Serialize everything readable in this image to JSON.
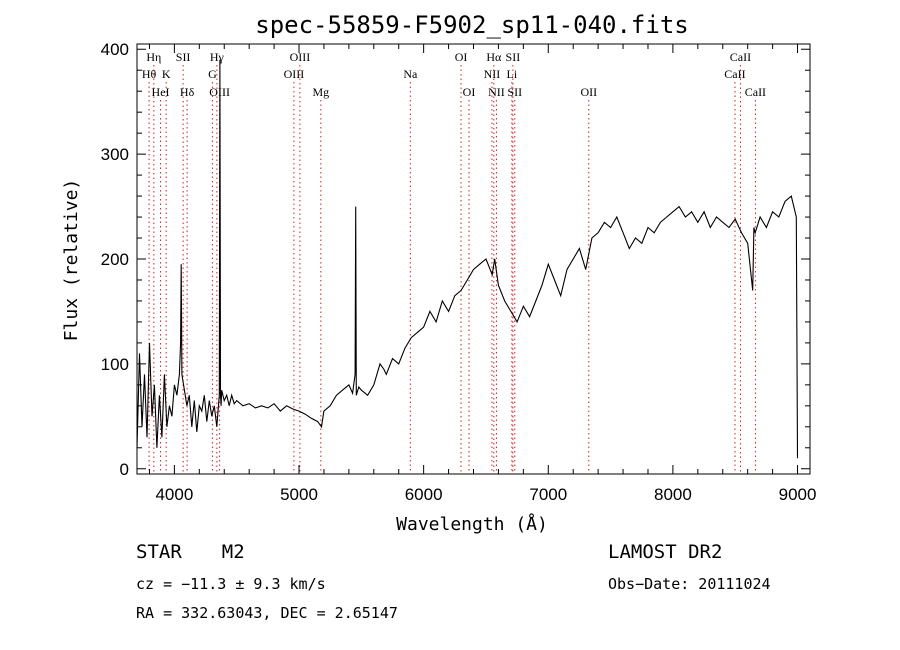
{
  "chart_data": {
    "type": "line",
    "title": "spec-55859-F5902_sp11-040.fits",
    "xlabel": "Wavelength (Å)",
    "ylabel": "Flux (relative)",
    "xlim": [
      3700,
      9100
    ],
    "ylim": [
      -5,
      405
    ],
    "x_ticks": [
      4000,
      5000,
      6000,
      7000,
      8000,
      9000
    ],
    "y_ticks": [
      0,
      100,
      200,
      300,
      400
    ],
    "grid": false,
    "series": [
      {
        "x": [
          3700,
          3720,
          3740,
          3760,
          3780,
          3800,
          3820,
          3840,
          3860,
          3880,
          3900,
          3920,
          3940,
          3960,
          3980,
          4000,
          4020,
          4040,
          4050,
          4055,
          4060,
          4080,
          4100,
          4120,
          4140,
          4160,
          4180,
          4200,
          4220,
          4240,
          4260,
          4280,
          4300,
          4320,
          4340,
          4360,
          4365,
          4370,
          4375,
          4380,
          4400,
          4420,
          4440,
          4460,
          4480,
          4500,
          4550,
          4600,
          4650,
          4700,
          4750,
          4800,
          4850,
          4900,
          4950,
          5000,
          5050,
          5100,
          5150,
          5180,
          5200,
          5250,
          5300,
          5350,
          5400,
          5430,
          5450,
          5455,
          5460,
          5480,
          5500,
          5550,
          5600,
          5650,
          5680,
          5700,
          5750,
          5800,
          5850,
          5900,
          5950,
          6000,
          6050,
          6100,
          6150,
          6200,
          6250,
          6300,
          6350,
          6400,
          6450,
          6500,
          6550,
          6570,
          6600,
          6650,
          6700,
          6750,
          6800,
          6850,
          6900,
          6950,
          7000,
          7050,
          7100,
          7150,
          7200,
          7250,
          7300,
          7350,
          7400,
          7450,
          7500,
          7550,
          7600,
          7650,
          7700,
          7750,
          7800,
          7850,
          7900,
          7950,
          8000,
          8050,
          8100,
          8150,
          8200,
          8250,
          8300,
          8350,
          8400,
          8450,
          8500,
          8550,
          8600,
          8640,
          8650,
          8660,
          8700,
          8750,
          8800,
          8850,
          8900,
          8950,
          8970,
          8990,
          9000
        ],
        "y": [
          20,
          110,
          40,
          90,
          30,
          120,
          50,
          80,
          20,
          70,
          30,
          90,
          40,
          60,
          50,
          80,
          70,
          90,
          120,
          195,
          90,
          75,
          60,
          70,
          40,
          65,
          35,
          60,
          55,
          70,
          45,
          65,
          50,
          60,
          40,
          70,
          390,
          70,
          60,
          75,
          65,
          70,
          60,
          70,
          62,
          65,
          60,
          62,
          58,
          60,
          58,
          62,
          55,
          60,
          57,
          55,
          52,
          48,
          45,
          40,
          55,
          60,
          70,
          75,
          80,
          72,
          90,
          250,
          70,
          78,
          75,
          70,
          80,
          100,
          95,
          90,
          105,
          100,
          115,
          125,
          130,
          135,
          150,
          140,
          160,
          150,
          165,
          170,
          180,
          190,
          195,
          200,
          185,
          200,
          175,
          160,
          150,
          140,
          155,
          145,
          160,
          175,
          195,
          180,
          165,
          190,
          200,
          210,
          190,
          220,
          225,
          235,
          230,
          240,
          225,
          210,
          220,
          215,
          230,
          225,
          235,
          240,
          245,
          250,
          240,
          245,
          235,
          245,
          230,
          240,
          235,
          230,
          238,
          225,
          215,
          170,
          230,
          225,
          240,
          230,
          245,
          240,
          255,
          260,
          250,
          240,
          10
        ]
      }
    ],
    "reference_lines": [
      {
        "label": "Hη",
        "x": 3835,
        "row": 1
      },
      {
        "label": "Hθ",
        "x": 3797,
        "row": 2
      },
      {
        "label": "HeI",
        "x": 3889,
        "row": 3
      },
      {
        "label": "SII",
        "x": 4070,
        "row": 1
      },
      {
        "label": "K",
        "x": 3934,
        "row": 2
      },
      {
        "label": "Hδ",
        "x": 4102,
        "row": 3
      },
      {
        "label": "Hγ",
        "x": 4341,
        "row": 1
      },
      {
        "label": "G",
        "x": 4305,
        "row": 2
      },
      {
        "label": "OIII",
        "x": 4363,
        "row": 3
      },
      {
        "label": "OIII",
        "x": 5007,
        "row": 1
      },
      {
        "label": "OIII",
        "x": 4959,
        "row": 2
      },
      {
        "label": "Mg",
        "x": 5175,
        "row": 3
      },
      {
        "label": "Na",
        "x": 5893,
        "row": 2
      },
      {
        "label": "OI",
        "x": 6300,
        "row": 1
      },
      {
        "label": "OI",
        "x": 6364,
        "row": 3
      },
      {
        "label": "Hα",
        "x": 6563,
        "row": 1
      },
      {
        "label": "SII",
        "x": 6716,
        "row": 1
      },
      {
        "label": "NII",
        "x": 6548,
        "row": 2
      },
      {
        "label": "Li",
        "x": 6708,
        "row": 2
      },
      {
        "label": "NII",
        "x": 6584,
        "row": 3
      },
      {
        "label": "SII",
        "x": 6731,
        "row": 3
      },
      {
        "label": "OII",
        "x": 7325,
        "row": 3
      },
      {
        "label": "CaII",
        "x": 8542,
        "row": 1
      },
      {
        "label": "CaII",
        "x": 8498,
        "row": 2
      },
      {
        "label": "CaII",
        "x": 8662,
        "row": 3
      }
    ]
  },
  "info": {
    "object_class": "STAR",
    "subclass": "M2",
    "survey": "LAMOST DR2",
    "cz": "cz = −11.3 ± 9.3 km/s",
    "obs_date": "Obs−Date: 20111024",
    "coords": "RA = 332.63043, DEC =   2.65147"
  }
}
